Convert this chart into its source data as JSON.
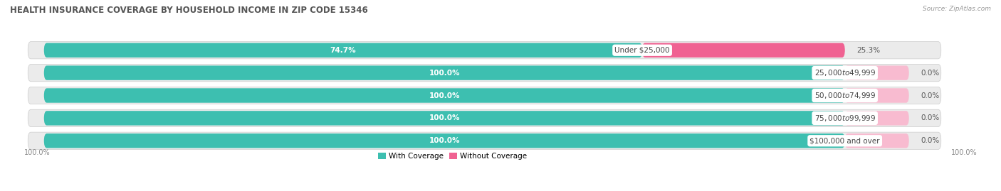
{
  "title": "HEALTH INSURANCE COVERAGE BY HOUSEHOLD INCOME IN ZIP CODE 15346",
  "source": "Source: ZipAtlas.com",
  "categories": [
    "Under $25,000",
    "$25,000 to $49,999",
    "$50,000 to $74,999",
    "$75,000 to $99,999",
    "$100,000 and over"
  ],
  "with_coverage": [
    74.7,
    100.0,
    100.0,
    100.0,
    100.0
  ],
  "without_coverage": [
    25.3,
    0.0,
    0.0,
    0.0,
    0.0
  ],
  "without_coverage_display": [
    25.3,
    0.0,
    0.0,
    0.0,
    0.0
  ],
  "without_nub": [
    0,
    8.0,
    8.0,
    8.0,
    8.0
  ],
  "color_with": "#3dbfb0",
  "color_without": "#f06292",
  "color_without_nub": "#f8bbd0",
  "row_bg": "#ebebeb",
  "title_fontsize": 8.5,
  "label_fontsize": 7.5,
  "pct_fontsize": 7.5,
  "cat_fontsize": 7.5,
  "bar_height": 0.62,
  "total_width": 100,
  "x_left_label": "100.0%",
  "x_right_label": "100.0%",
  "legend_with": "With Coverage",
  "legend_without": "Without Coverage"
}
